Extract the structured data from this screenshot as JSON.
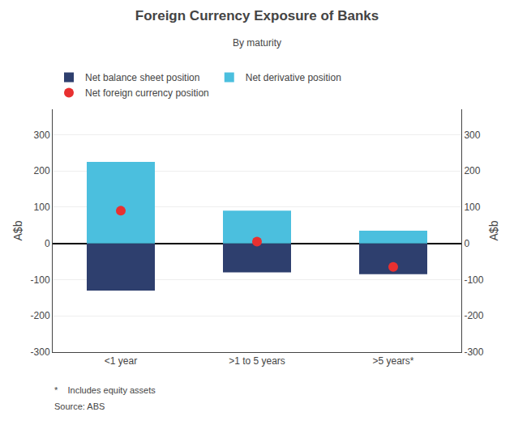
{
  "chart_data": {
    "type": "bar",
    "title": "Foreign Currency Exposure of Banks",
    "subtitle": "By maturity",
    "ylabel": "A$b",
    "y2label": "A$b",
    "categories": [
      "<1 year",
      ">1 to 5 years",
      ">5 years*"
    ],
    "series": [
      {
        "name": "Net balance sheet position",
        "color": "#2e3f6e",
        "values": [
          -130,
          -80,
          -85
        ]
      },
      {
        "name": "Net derivative position",
        "color": "#4bbfde",
        "values": [
          225,
          90,
          35
        ]
      },
      {
        "name": "Net foreign currency position",
        "type": "scatter",
        "marker": "circle",
        "color": "#e83030",
        "values": [
          90,
          5,
          -65
        ]
      }
    ],
    "stacked": false,
    "ylim": [
      -300,
      370
    ],
    "yticks": [
      -300,
      -200,
      -100,
      0,
      100,
      200,
      300
    ],
    "y2lim": [
      -300,
      370
    ],
    "y2ticks": [
      -300,
      -200,
      -100,
      0,
      100,
      200,
      300
    ],
    "grid": true,
    "footnotes": [
      "*    Includes equity assets",
      "Source: ABS"
    ]
  }
}
